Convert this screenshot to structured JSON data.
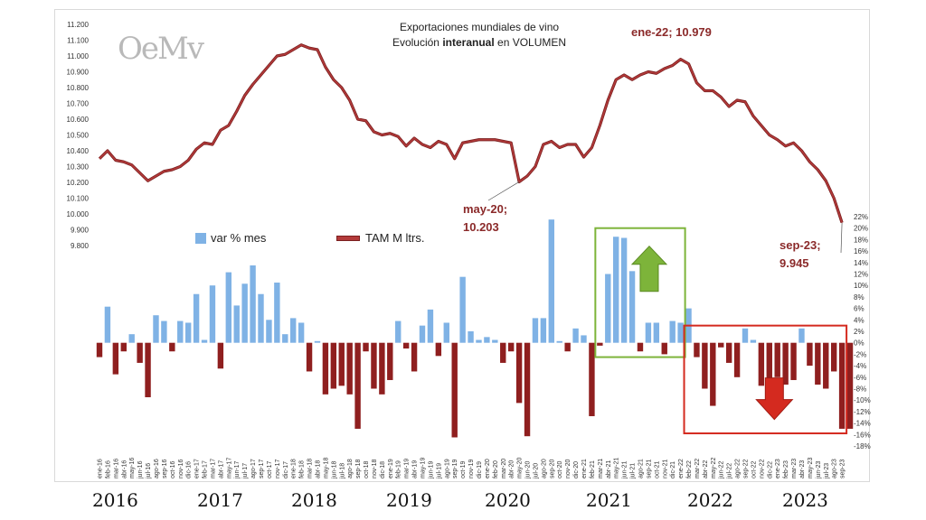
{
  "chart_data": {
    "type": "bar+line",
    "title_line1": "Exportaciones mundiales de vino",
    "title_line2_pre": "Evolución",
    "title_line2_bold": "interanual",
    "title_line2_post": "en VOLUMEN",
    "logo_text": "OeMv",
    "legend": {
      "bars": "var % mes",
      "line": "TAM M ltrs."
    },
    "left_axis": {
      "min": 9800,
      "max": 11200,
      "step": 100,
      "tick_labels": [
        "9.800",
        "9.900",
        "10.000",
        "10.100",
        "10.200",
        "10.300",
        "10.400",
        "10.500",
        "10.600",
        "10.700",
        "10.800",
        "10.900",
        "11.000",
        "11.100",
        "11.200"
      ]
    },
    "right_axis": {
      "min": -18,
      "max": 22,
      "step": 2,
      "tick_labels": [
        "-18%",
        "-16%",
        "-14%",
        "-12%",
        "-10%",
        "-8%",
        "-6%",
        "-4%",
        "-2%",
        "0%",
        "2%",
        "4%",
        "6%",
        "8%",
        "10%",
        "12%",
        "14%",
        "16%",
        "18%",
        "20%",
        "22%"
      ]
    },
    "x_labels": [
      "ene-16",
      "feb-16",
      "mar-16",
      "abr-16",
      "may-16",
      "jun-16",
      "jul-16",
      "ago-16",
      "sep-16",
      "oct-16",
      "nov-16",
      "dic-16",
      "ene-17",
      "feb-17",
      "mar-17",
      "abr-17",
      "may-17",
      "jun-17",
      "jul-17",
      "ago-17",
      "sep-17",
      "oct-17",
      "nov-17",
      "dic-17",
      "ene-18",
      "feb-18",
      "mar-18",
      "abr-18",
      "may-18",
      "jun-18",
      "jul-18",
      "ago-18",
      "sep-18",
      "oct-18",
      "nov-18",
      "dic-18",
      "ene-19",
      "feb-19",
      "mar-19",
      "abr-19",
      "may-19",
      "jun-19",
      "jul-19",
      "ago-19",
      "sep-19",
      "oct-19",
      "nov-19",
      "dic-19",
      "ene-20",
      "feb-20",
      "mar-20",
      "abr-20",
      "may-20",
      "jun-20",
      "jul-20",
      "ago-20",
      "sep-20",
      "oct-20",
      "nov-20",
      "dic-20",
      "ene-21",
      "feb-21",
      "mar-21",
      "abr-21",
      "may-21",
      "jun-21",
      "jul-21",
      "ago-21",
      "sep-21",
      "oct-21",
      "nov-21",
      "dic-21",
      "ene-22",
      "feb-22",
      "mar-22",
      "abr-22",
      "may-22",
      "jun-22",
      "jul-22",
      "ago-22",
      "sep-22",
      "oct-22",
      "nov-22",
      "dic-22",
      "ene-23",
      "feb-23",
      "mar-23",
      "abr-23",
      "may-23",
      "jun-23",
      "jul-23",
      "ago-23",
      "sep-23"
    ],
    "bars": [
      -2.5,
      6.3,
      -5.5,
      -1.5,
      1.5,
      -3.5,
      -9.5,
      4.8,
      3.8,
      -1.5,
      3.8,
      3.5,
      8.5,
      0.5,
      10,
      -4.5,
      12.3,
      6.5,
      10.3,
      13.5,
      8.5,
      4,
      10.5,
      1.5,
      4.3,
      3.5,
      -5,
      0.3,
      -9,
      -8,
      -7.5,
      -9,
      -15,
      -1.5,
      -8,
      -9,
      -6.5,
      3.8,
      -1,
      -5,
      3,
      5.8,
      -2.3,
      3.5,
      -16.5,
      11.5,
      2,
      0.5,
      1,
      0.5,
      -3.5,
      -1.5,
      -10.5,
      -16.3,
      4.3,
      4.3,
      21.5,
      0.3,
      -1.5,
      2.5,
      1.3,
      -12.8,
      -0.5,
      12,
      18.5,
      18.3,
      12.5,
      -1.5,
      3.5,
      3.5,
      -2,
      3.8,
      3.5,
      6,
      -2.5,
      -8,
      -11,
      -0.8,
      -3.5,
      -6,
      2.5,
      0.5,
      -7.5,
      -7.5,
      -6,
      -7.3,
      -6.5,
      2.5,
      -4,
      -7.3,
      -8,
      -5,
      -15,
      -15
    ],
    "line": [
      10350,
      10400,
      10340,
      10330,
      10310,
      10260,
      10210,
      10240,
      10270,
      10280,
      10300,
      10340,
      10410,
      10450,
      10440,
      10530,
      10560,
      10650,
      10750,
      10820,
      10880,
      10940,
      11000,
      11010,
      11040,
      11070,
      11050,
      11040,
      10930,
      10850,
      10800,
      10720,
      10600,
      10590,
      10520,
      10500,
      10510,
      10490,
      10430,
      10480,
      10440,
      10420,
      10460,
      10440,
      10350,
      10450,
      10460,
      10470,
      10470,
      10470,
      10460,
      10450,
      10203,
      10240,
      10300,
      10440,
      10460,
      10420,
      10440,
      10440,
      10360,
      10420,
      10560,
      10720,
      10850,
      10880,
      10850,
      10880,
      10900,
      10890,
      10920,
      10940,
      10979,
      10950,
      10830,
      10780,
      10780,
      10740,
      10680,
      10720,
      10710,
      10620,
      10560,
      10500,
      10470,
      10430,
      10450,
      10400,
      10330,
      10280,
      10210,
      10100,
      9945
    ],
    "annotations": [
      {
        "label_line1": "ene-22; 10.979",
        "label_line2": "",
        "index": 72
      },
      {
        "label_line1": "may-20;",
        "label_line2": "10.203",
        "index": 52
      },
      {
        "label_line1": "sep-23;",
        "label_line2": "9.945",
        "index": 92
      }
    ],
    "highlight_boxes": [
      {
        "from_index": 62,
        "to_index": 72,
        "color": "#7db43a",
        "direction": "up"
      },
      {
        "from_index": 73,
        "to_index": 92,
        "color": "#d42a1f",
        "direction": "down"
      }
    ],
    "years": [
      "2016",
      "2017",
      "2018",
      "2019",
      "2020",
      "2021",
      "2022",
      "2023"
    ],
    "colors": {
      "bar_pos": "#7fb2e5",
      "bar_neg": "#8f1f1f",
      "line": "#b33a3a",
      "line_outline": "#7a1f1f"
    }
  }
}
